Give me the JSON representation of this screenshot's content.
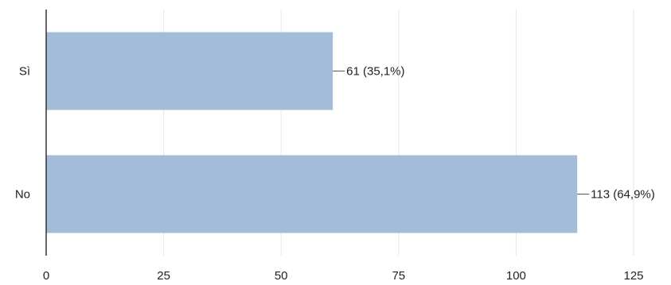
{
  "chart_data": {
    "type": "bar",
    "orientation": "horizontal",
    "categories": [
      "Sì",
      "No"
    ],
    "values": [
      61,
      113
    ],
    "data_labels": [
      "61 (35,1%)",
      "113 (64,9%)"
    ],
    "xticks": [
      0,
      25,
      50,
      75,
      100,
      125
    ],
    "xlim": [
      0,
      125
    ],
    "grid": true,
    "legend": "none",
    "bar_color": "#a3bcd8",
    "axis_color": "#333333",
    "grid_color": "#e6e6e6",
    "title": "",
    "xlabel": "",
    "ylabel": ""
  }
}
